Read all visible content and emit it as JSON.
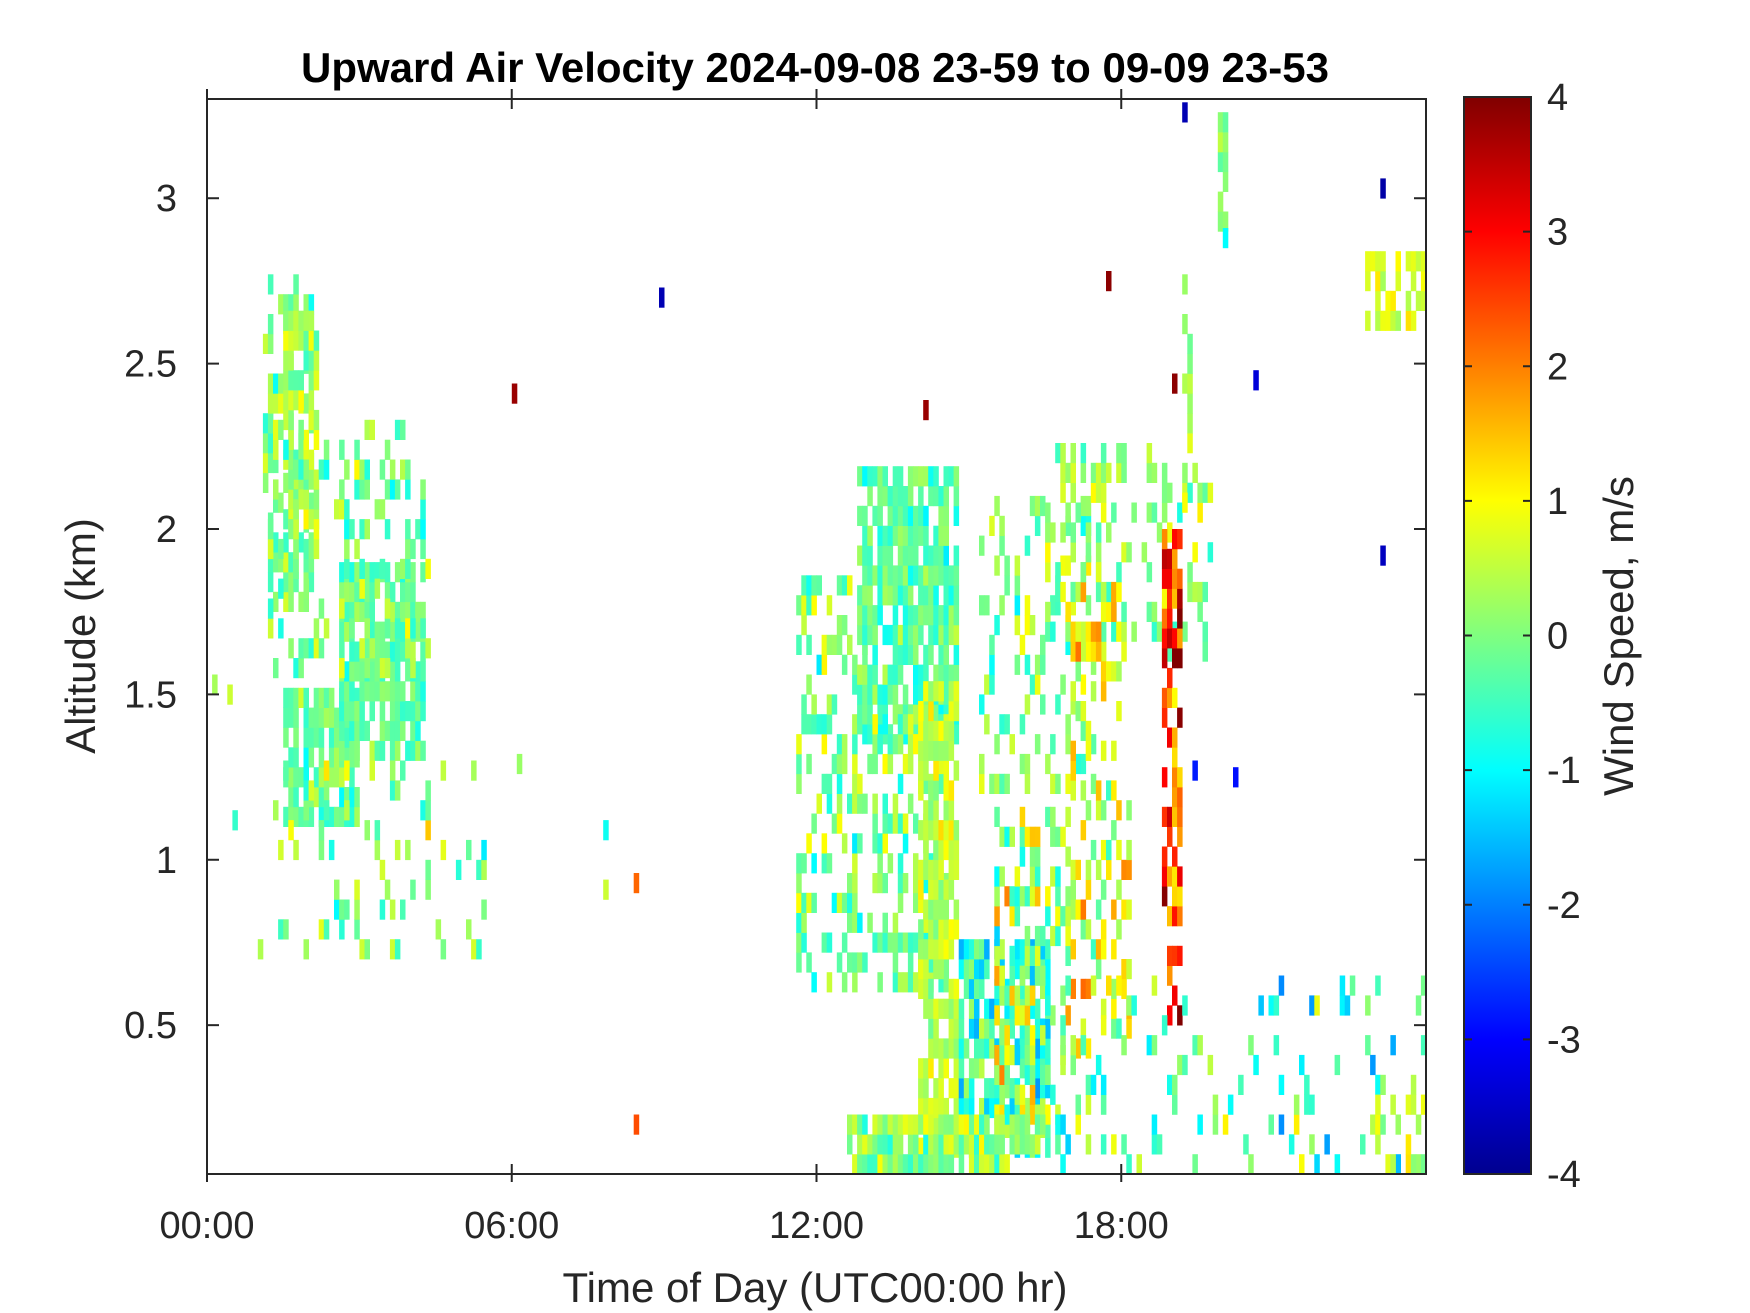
{
  "chart_data": {
    "type": "heatmap",
    "title": "Upward Air Velocity 2024-09-08 23-59 to 09-09 23-53",
    "xlabel": "Time of Day (UTC00:00 hr)",
    "ylabel": "Altitude (km)",
    "x_unit": "hours (UTC)",
    "xlim": [
      0,
      24
    ],
    "ylim": [
      0.05,
      3.3
    ],
    "x_ticks": [
      {
        "value": 0,
        "label": "00:00"
      },
      {
        "value": 6,
        "label": "06:00"
      },
      {
        "value": 12,
        "label": "12:00"
      },
      {
        "value": 18,
        "label": "18:00"
      }
    ],
    "y_ticks": [
      {
        "value": 0.5,
        "label": "0.5"
      },
      {
        "value": 1,
        "label": "1"
      },
      {
        "value": 1.5,
        "label": "1.5"
      },
      {
        "value": 2,
        "label": "2"
      },
      {
        "value": 2.5,
        "label": "2.5"
      },
      {
        "value": 3,
        "label": "3"
      }
    ],
    "colorbar": {
      "label": "Wind Speed, m/s",
      "colormap": "jet",
      "range": [
        -4,
        4
      ],
      "ticks": [
        {
          "value": 4,
          "label": "4"
        },
        {
          "value": 3,
          "label": "3"
        },
        {
          "value": 2,
          "label": "2"
        },
        {
          "value": 1,
          "label": "1"
        },
        {
          "value": 0,
          "label": "0"
        },
        {
          "value": -1,
          "label": "-1"
        },
        {
          "value": -2,
          "label": "-2"
        },
        {
          "value": -3,
          "label": "-3"
        },
        {
          "value": -4,
          "label": "-4"
        }
      ]
    },
    "cell_size": {
      "hours": 0.1,
      "km": 0.06
    },
    "regions": [
      {
        "t0": 1.1,
        "t1": 2.1,
        "h0": 1.75,
        "h1": 2.75,
        "v_mean": -0.1,
        "v_spread": 0.7,
        "density": 0.45
      },
      {
        "t0": 1.5,
        "t1": 2.2,
        "h0": 2.0,
        "h1": 2.65,
        "v_mean": 0.3,
        "v_spread": 0.6,
        "density": 0.75
      },
      {
        "t0": 1.5,
        "t1": 3.0,
        "h0": 1.1,
        "h1": 1.5,
        "v_mean": -0.2,
        "v_spread": 0.6,
        "density": 0.85
      },
      {
        "t0": 2.6,
        "t1": 4.3,
        "h0": 1.3,
        "h1": 1.9,
        "v_mean": -0.2,
        "v_spread": 0.5,
        "density": 0.8
      },
      {
        "t0": 1.2,
        "t1": 4.4,
        "h0": 1.55,
        "h1": 2.3,
        "v_mean": -0.1,
        "v_spread": 0.8,
        "density": 0.25
      },
      {
        "t0": 1.0,
        "t1": 5.6,
        "h0": 0.7,
        "h1": 1.3,
        "v_mean": 0.0,
        "v_spread": 1.0,
        "density": 0.12
      },
      {
        "t0": 11.6,
        "t1": 13.0,
        "h0": 0.6,
        "h1": 1.85,
        "v_mean": -0.1,
        "v_spread": 0.9,
        "density": 0.35
      },
      {
        "t0": 12.8,
        "t1": 14.8,
        "h0": 1.35,
        "h1": 2.15,
        "v_mean": -0.3,
        "v_spread": 0.6,
        "density": 0.8
      },
      {
        "t0": 13.0,
        "t1": 14.6,
        "h0": 0.6,
        "h1": 1.4,
        "v_mean": 0.0,
        "v_spread": 0.8,
        "density": 0.55
      },
      {
        "t0": 14.0,
        "t1": 14.8,
        "h0": 0.1,
        "h1": 1.5,
        "v_mean": 0.5,
        "v_spread": 0.6,
        "density": 0.75
      },
      {
        "t0": 14.8,
        "t1": 16.6,
        "h0": 0.1,
        "h1": 0.75,
        "v_mean": -0.6,
        "v_spread": 0.9,
        "density": 0.7
      },
      {
        "t0": 15.5,
        "t1": 17.0,
        "h0": 0.2,
        "h1": 1.15,
        "v_mean": 0.4,
        "v_spread": 1.3,
        "density": 0.5
      },
      {
        "t0": 12.6,
        "t1": 16.5,
        "h0": 0.05,
        "h1": 0.2,
        "v_mean": 0.1,
        "v_spread": 0.8,
        "density": 0.85
      },
      {
        "t0": 15.2,
        "t1": 17.5,
        "h0": 1.2,
        "h1": 2.1,
        "v_mean": 0.0,
        "v_spread": 0.9,
        "density": 0.25
      },
      {
        "t0": 16.5,
        "t1": 19.8,
        "h0": 1.6,
        "h1": 2.25,
        "v_mean": 0.2,
        "v_spread": 0.8,
        "density": 0.3
      },
      {
        "t0": 17.0,
        "t1": 18.2,
        "h0": 0.4,
        "h1": 1.9,
        "v_mean": 0.8,
        "v_spread": 1.0,
        "density": 0.3
      },
      {
        "t0": 18.8,
        "t1": 19.2,
        "h0": 0.5,
        "h1": 2.0,
        "v_mean": 2.5,
        "v_spread": 1.3,
        "density": 0.55
      },
      {
        "t0": 19.2,
        "t1": 19.4,
        "h0": 2.05,
        "h1": 2.75,
        "v_mean": 0.3,
        "v_spread": 0.5,
        "density": 0.4
      },
      {
        "t0": 19.9,
        "t1": 20.1,
        "h0": 2.9,
        "h1": 3.3,
        "v_mean": 0.0,
        "v_spread": 0.5,
        "density": 0.7
      },
      {
        "t0": 16.5,
        "t1": 24.0,
        "h0": 0.05,
        "h1": 0.6,
        "v_mean": -0.4,
        "v_spread": 1.2,
        "density": 0.14
      },
      {
        "t0": 22.8,
        "t1": 24.0,
        "h0": 2.6,
        "h1": 2.8,
        "v_mean": 0.7,
        "v_spread": 0.4,
        "density": 0.55
      },
      {
        "t0": 22.7,
        "t1": 24.0,
        "h0": 0.05,
        "h1": 0.25,
        "v_mean": 0.3,
        "v_spread": 1.0,
        "density": 0.45
      }
    ],
    "points": [
      {
        "t": 6.0,
        "h": 2.38,
        "v": 3.8
      },
      {
        "t": 14.1,
        "h": 2.33,
        "v": 3.8
      },
      {
        "t": 17.7,
        "h": 2.72,
        "v": 3.9
      },
      {
        "t": 8.9,
        "h": 2.67,
        "v": -3.6
      },
      {
        "t": 19.2,
        "h": 3.23,
        "v": -3.6
      },
      {
        "t": 20.6,
        "h": 2.42,
        "v": -3.3
      },
      {
        "t": 23.1,
        "h": 3.0,
        "v": -3.7
      },
      {
        "t": 23.1,
        "h": 1.89,
        "v": -3.5
      },
      {
        "t": 20.2,
        "h": 1.22,
        "v": -2.9
      },
      {
        "t": 19.4,
        "h": 1.24,
        "v": -2.8
      },
      {
        "t": 19.0,
        "h": 2.41,
        "v": 3.9
      },
      {
        "t": 8.4,
        "h": 0.9,
        "v": 2.2
      },
      {
        "t": 8.4,
        "h": 0.17,
        "v": 2.4
      },
      {
        "t": 0.1,
        "h": 1.5,
        "v": 0.3
      },
      {
        "t": 0.4,
        "h": 1.47,
        "v": 0.6
      },
      {
        "t": 0.5,
        "h": 1.09,
        "v": -0.6
      },
      {
        "t": 6.1,
        "h": 1.26,
        "v": 0.2
      },
      {
        "t": 7.8,
        "h": 1.06,
        "v": -0.9
      },
      {
        "t": 7.8,
        "h": 0.88,
        "v": 0.6
      },
      {
        "t": 20.0,
        "h": 2.85,
        "v": -1.0
      }
    ]
  }
}
